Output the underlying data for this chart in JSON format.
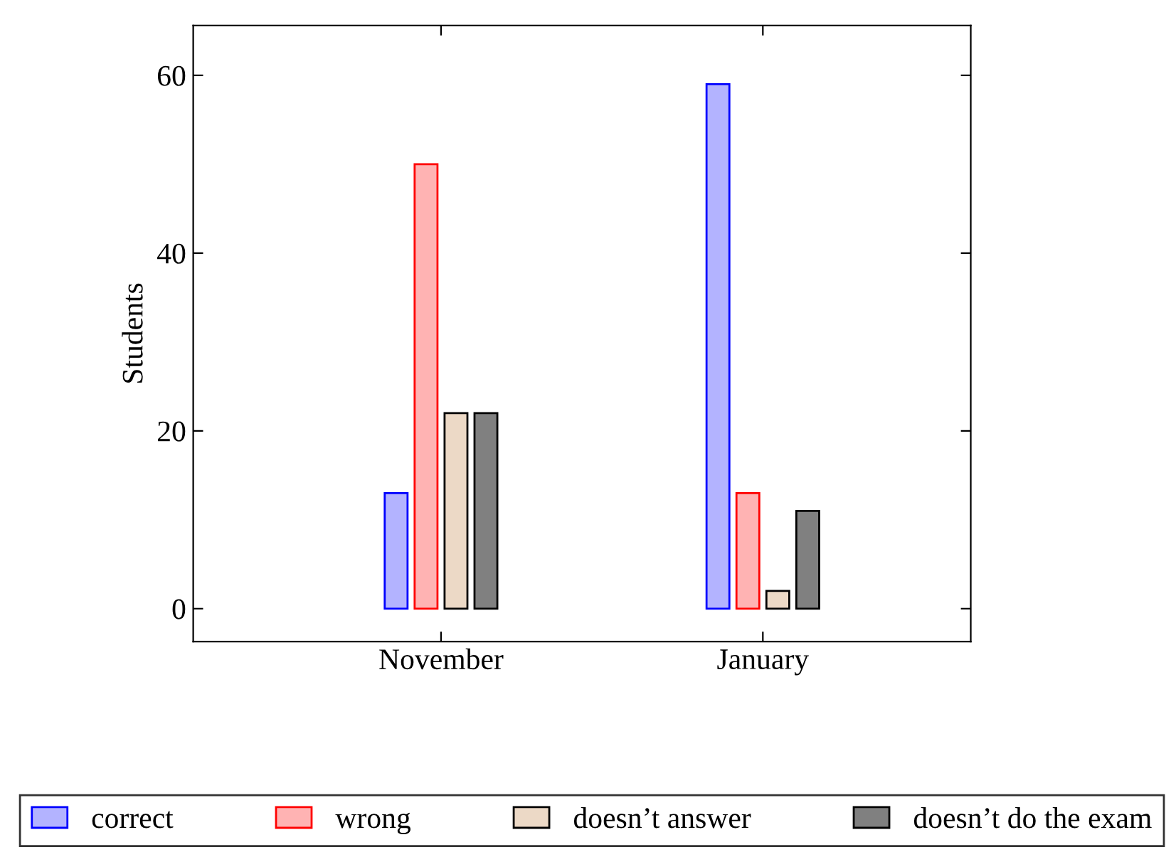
{
  "chart_data": {
    "type": "bar",
    "ylabel": "Students",
    "categories": [
      "November",
      "January"
    ],
    "series": [
      {
        "name": "correct",
        "color": "#b3b3ff",
        "values": [
          13,
          59
        ]
      },
      {
        "name": "wrong",
        "color": "#ffb3b3",
        "values": [
          50,
          13
        ]
      },
      {
        "name": "doesn’t answer",
        "color": "#ecd9c6",
        "values": [
          22,
          2
        ]
      },
      {
        "name": "doesn’t do the exam",
        "color": "#808080",
        "values": [
          22,
          11
        ]
      }
    ],
    "ylim": [
      -3.7,
      65.6
    ],
    "yticks": [
      0,
      20,
      40,
      60
    ],
    "grid": false,
    "legend": "bottom"
  }
}
